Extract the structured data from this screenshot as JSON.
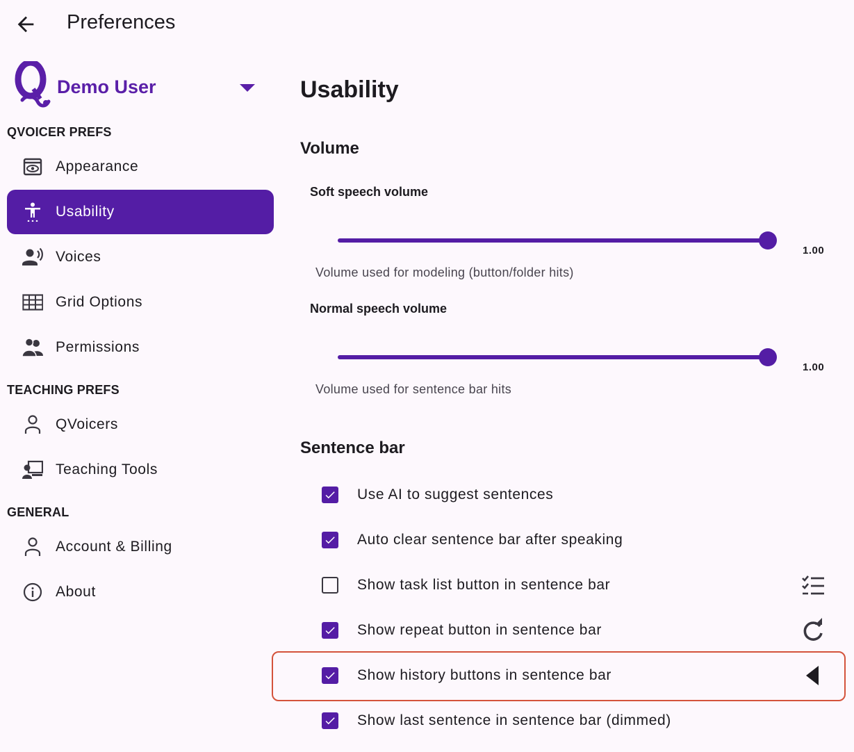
{
  "header": {
    "title": "Preferences"
  },
  "user": {
    "name": "Demo User"
  },
  "sidebar": {
    "sections": [
      {
        "heading": "QVOICER PREFS",
        "items": [
          {
            "label": "Appearance",
            "icon": "eye-window-icon",
            "active": false
          },
          {
            "label": "Usability",
            "icon": "accessibility-icon",
            "active": true
          },
          {
            "label": "Voices",
            "icon": "voice-person-icon",
            "active": false
          },
          {
            "label": "Grid Options",
            "icon": "grid-icon",
            "active": false
          },
          {
            "label": "Permissions",
            "icon": "people-icon",
            "active": false
          }
        ]
      },
      {
        "heading": "TEACHING PREFS",
        "items": [
          {
            "label": "QVoicers",
            "icon": "person-outline-icon",
            "active": false
          },
          {
            "label": "Teaching Tools",
            "icon": "presentation-icon",
            "active": false
          }
        ]
      },
      {
        "heading": "GENERAL",
        "items": [
          {
            "label": "Account & Billing",
            "icon": "person-outline-icon",
            "active": false
          },
          {
            "label": "About",
            "icon": "info-icon",
            "active": false
          }
        ]
      }
    ]
  },
  "main": {
    "title": "Usability",
    "volume": {
      "heading": "Volume",
      "sliders": [
        {
          "label": "Soft speech volume",
          "value": 1.0,
          "value_text": "1.00",
          "help": "Volume used for modeling (button/folder hits)"
        },
        {
          "label": "Normal speech volume",
          "value": 1.0,
          "value_text": "1.00",
          "help": "Volume used for sentence bar hits"
        }
      ]
    },
    "sentence_bar": {
      "heading": "Sentence bar",
      "options": [
        {
          "label": "Use AI to suggest sentences",
          "checked": true,
          "icon": ""
        },
        {
          "label": "Auto clear sentence bar after speaking",
          "checked": true,
          "icon": ""
        },
        {
          "label": "Show task list button in sentence bar",
          "checked": false,
          "icon": "checklist-icon"
        },
        {
          "label": "Show repeat button in sentence bar",
          "checked": true,
          "icon": "repeat-icon"
        },
        {
          "label": "Show history buttons in sentence bar",
          "checked": true,
          "icon": "history-back-icon"
        },
        {
          "label": "Show last sentence in sentence bar (dimmed)",
          "checked": true,
          "icon": ""
        }
      ]
    }
  },
  "colors": {
    "accent": "#541da5",
    "brand": "#5a1fa8",
    "background": "#fdf8fd",
    "highlight": "#d4533b"
  }
}
